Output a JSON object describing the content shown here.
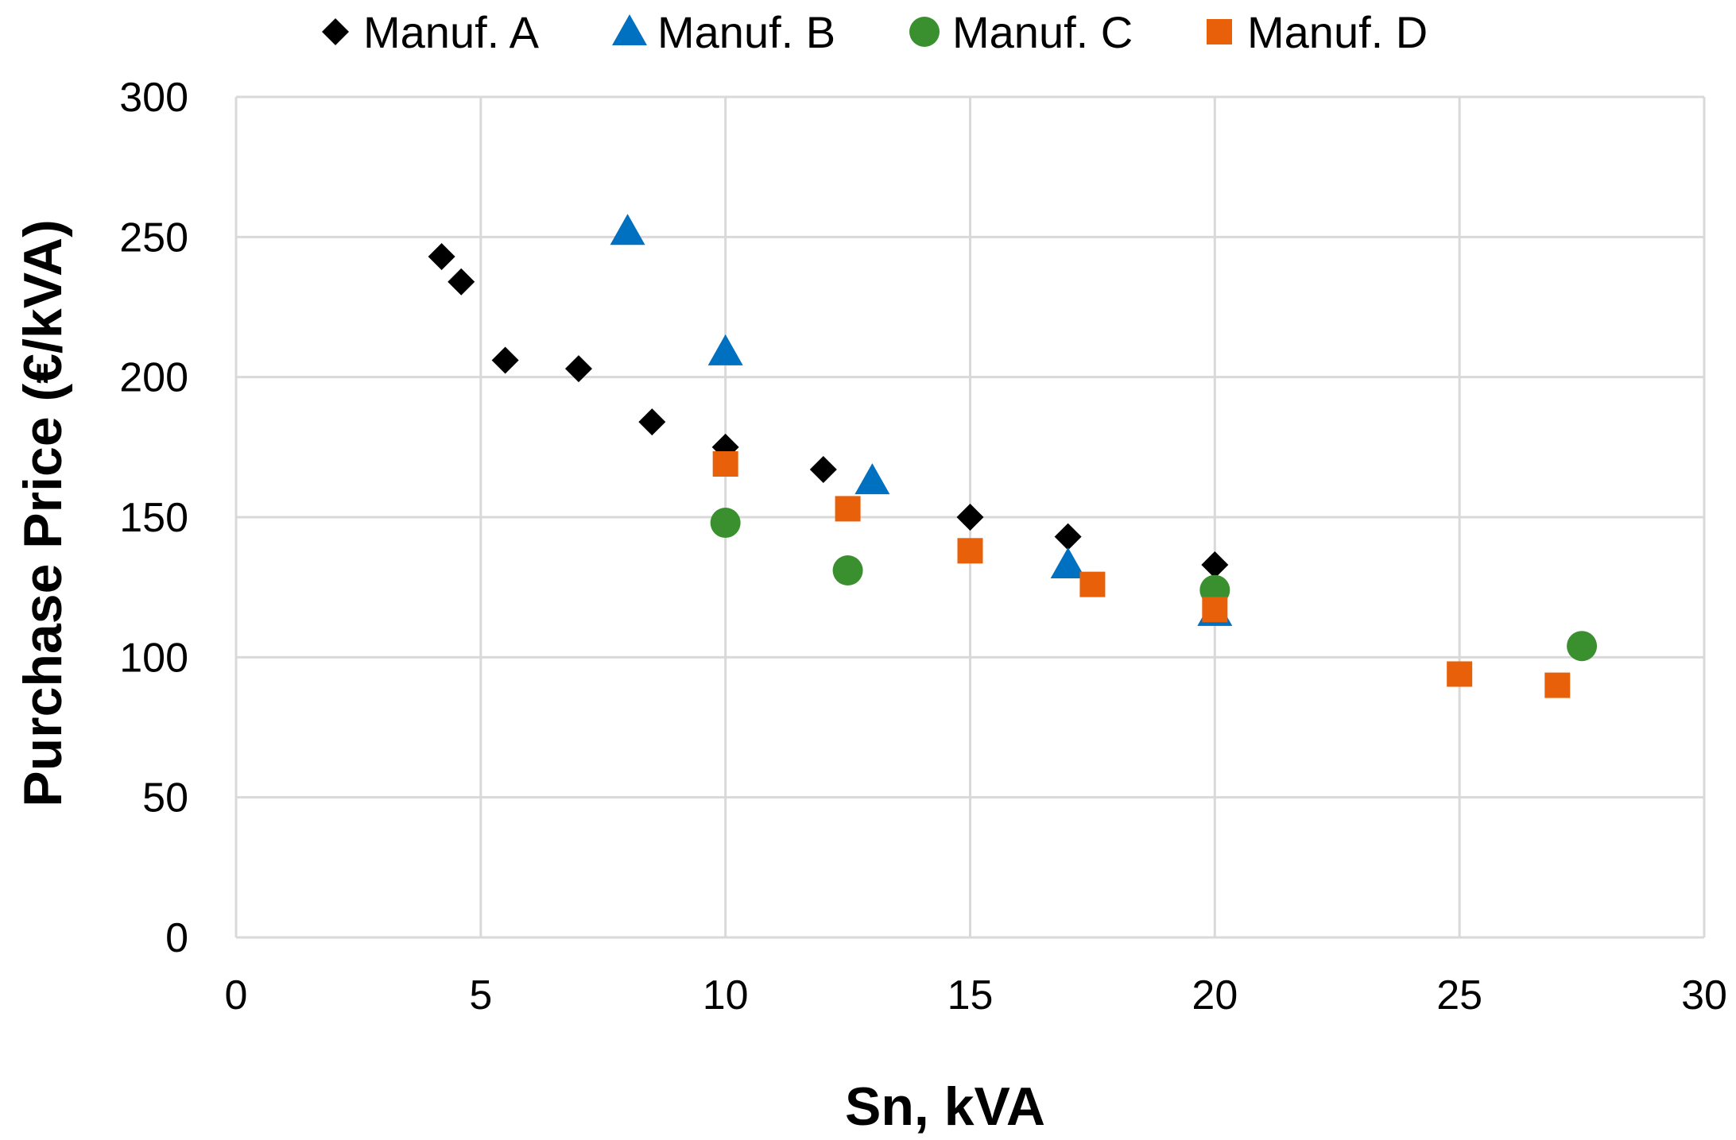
{
  "chart_data": {
    "type": "scatter",
    "title": "",
    "xlabel": "Sn, kVA",
    "ylabel": "Purchase Price (€/kVA)",
    "xlim": [
      0,
      30
    ],
    "ylim": [
      0,
      300
    ],
    "xticks": [
      0,
      5,
      10,
      15,
      20,
      25,
      30
    ],
    "yticks": [
      0,
      50,
      100,
      150,
      200,
      250,
      300
    ],
    "grid": true,
    "legend_position": "top",
    "series": [
      {
        "name": "Manuf. A",
        "marker": "diamond",
        "color": "#000000",
        "points": [
          [
            4.2,
            243
          ],
          [
            4.6,
            234
          ],
          [
            5.5,
            206
          ],
          [
            7,
            203
          ],
          [
            8.5,
            184
          ],
          [
            10,
            175
          ],
          [
            12,
            167
          ],
          [
            15,
            150
          ],
          [
            17,
            143
          ],
          [
            20,
            133
          ]
        ]
      },
      {
        "name": "Manuf. B",
        "marker": "triangle",
        "color": "#0070C0",
        "points": [
          [
            8,
            252
          ],
          [
            10,
            209
          ],
          [
            13,
            163
          ],
          [
            17,
            133
          ],
          [
            20,
            116
          ]
        ]
      },
      {
        "name": "Manuf. C",
        "marker": "circle",
        "color": "#3A8F2E",
        "points": [
          [
            10,
            148
          ],
          [
            12.5,
            131
          ],
          [
            20,
            124
          ],
          [
            27.5,
            104
          ]
        ]
      },
      {
        "name": "Manuf. D",
        "marker": "square",
        "color": "#E8600A",
        "points": [
          [
            10,
            169
          ],
          [
            12.5,
            153
          ],
          [
            15,
            138
          ],
          [
            17.5,
            126
          ],
          [
            20,
            117
          ],
          [
            25,
            94
          ],
          [
            27,
            90
          ]
        ]
      }
    ]
  }
}
